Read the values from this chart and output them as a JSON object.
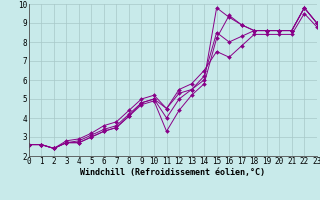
{
  "xlabel": "Windchill (Refroidissement éolien,°C)",
  "background_color": "#c8eaea",
  "grid_color": "#a8c8c8",
  "line_color": "#880088",
  "xlim": [
    0,
    23
  ],
  "ylim": [
    2,
    10
  ],
  "xticks": [
    0,
    1,
    2,
    3,
    4,
    5,
    6,
    7,
    8,
    9,
    10,
    11,
    12,
    13,
    14,
    15,
    16,
    17,
    18,
    19,
    20,
    21,
    22,
    23
  ],
  "yticks": [
    2,
    3,
    4,
    5,
    6,
    7,
    8,
    9,
    10
  ],
  "lines": [
    {
      "x": [
        0,
        1,
        2,
        3,
        4,
        5,
        6,
        7,
        8,
        9,
        10,
        11,
        12,
        13,
        14,
        15,
        16,
        17,
        18,
        19,
        20,
        21,
        22,
        23
      ],
      "y": [
        2.6,
        2.6,
        2.4,
        2.7,
        2.7,
        3.0,
        3.3,
        3.5,
        4.1,
        4.8,
        5.0,
        4.5,
        5.3,
        5.5,
        6.0,
        9.8,
        9.3,
        8.9,
        8.6,
        8.6,
        8.6,
        8.6,
        9.8,
        9.0
      ]
    },
    {
      "x": [
        0,
        1,
        2,
        3,
        4,
        5,
        6,
        7,
        8,
        9,
        10,
        11,
        12,
        13,
        14,
        15,
        16,
        17,
        18,
        19,
        20,
        21,
        22,
        23
      ],
      "y": [
        2.6,
        2.6,
        2.4,
        2.7,
        2.7,
        3.0,
        3.3,
        3.5,
        4.1,
        4.7,
        4.9,
        3.3,
        4.4,
        5.2,
        5.8,
        8.2,
        9.4,
        8.9,
        8.6,
        8.6,
        8.6,
        8.6,
        9.8,
        9.0
      ]
    },
    {
      "x": [
        0,
        1,
        2,
        3,
        4,
        5,
        6,
        7,
        8,
        9,
        10,
        11,
        12,
        13,
        14,
        15,
        16,
        17,
        18,
        19,
        20,
        21,
        22,
        23
      ],
      "y": [
        2.6,
        2.6,
        2.4,
        2.7,
        2.8,
        3.1,
        3.4,
        3.6,
        4.2,
        4.8,
        5.0,
        4.0,
        5.0,
        5.5,
        6.2,
        8.5,
        8.0,
        8.3,
        8.6,
        8.6,
        8.6,
        8.6,
        9.8,
        9.0
      ]
    },
    {
      "x": [
        0,
        1,
        2,
        3,
        4,
        5,
        6,
        7,
        8,
        9,
        10,
        11,
        12,
        13,
        14,
        15,
        16,
        17,
        18,
        19,
        20,
        21,
        22,
        23
      ],
      "y": [
        2.6,
        2.6,
        2.4,
        2.8,
        2.9,
        3.2,
        3.6,
        3.8,
        4.4,
        5.0,
        5.2,
        4.5,
        5.5,
        5.8,
        6.5,
        7.5,
        7.2,
        7.8,
        8.4,
        8.4,
        8.4,
        8.4,
        9.5,
        8.8
      ]
    }
  ],
  "tick_fontsize": 5.5,
  "label_fontsize": 6.0,
  "marker_size": 2.0,
  "linewidth": 0.7
}
